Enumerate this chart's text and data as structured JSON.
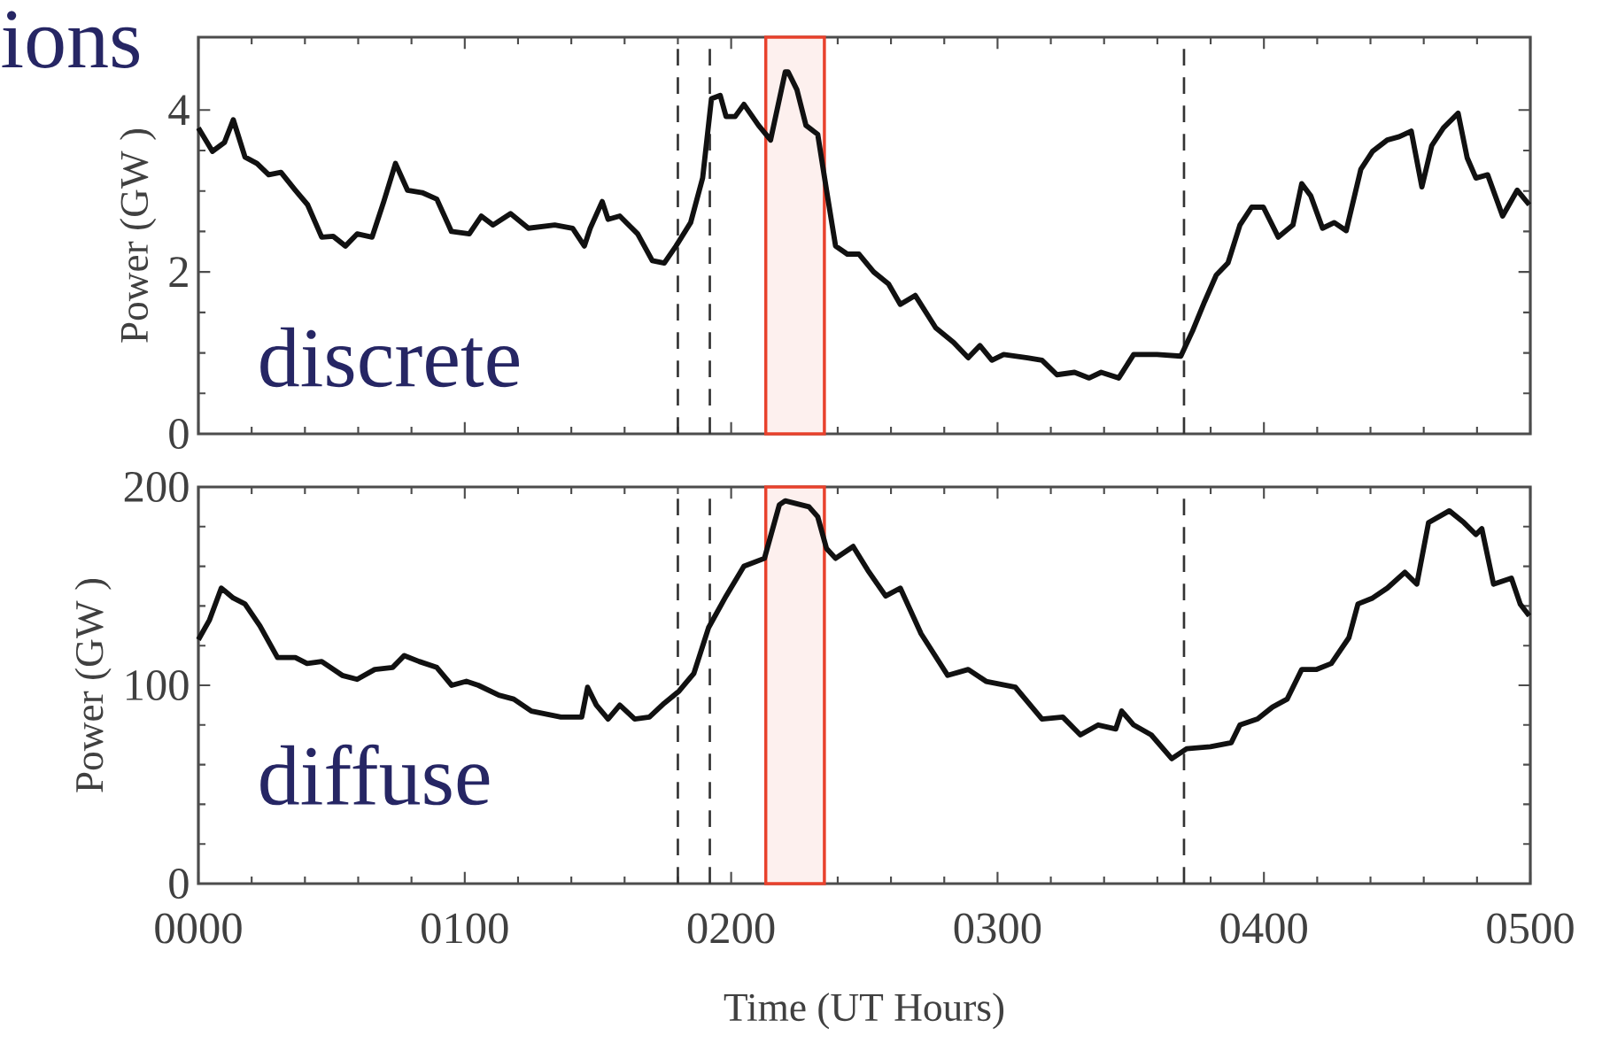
{
  "chart_data": [
    {
      "type": "line",
      "title": "ions",
      "ylabel": "Power (GW )",
      "annotations": [
        "discrete"
      ],
      "xlim": [
        0,
        500
      ],
      "xticks": [
        {
          "value": 0,
          "label": null
        },
        {
          "value": 100,
          "label": null
        },
        {
          "value": 200,
          "label": null
        },
        {
          "value": 300,
          "label": null
        },
        {
          "value": 400,
          "label": null
        },
        {
          "value": 500,
          "label": null
        }
      ],
      "ylim": [
        0,
        4.9
      ],
      "yticks": [
        0,
        2,
        4
      ],
      "tick_labels": "y",
      "ref_lines": [
        {
          "axis": "x",
          "value": 180,
          "line_style": "dashed",
          "color": "#333333"
        },
        {
          "axis": "x",
          "value": 192,
          "line_style": "dashed",
          "color": "#333333"
        },
        {
          "axis": "x",
          "value": 370,
          "line_style": "dashed",
          "color": "#333333"
        }
      ],
      "bands": [
        {
          "axis": "x",
          "from": 213,
          "to": 235,
          "color": "#e8412c"
        }
      ],
      "series": [
        {
          "color": "#111111",
          "x": [
            0,
            5.3,
            9.8,
            13.1,
            17.5,
            22,
            26.4,
            31,
            36.4,
            41,
            46.3,
            50.6,
            55.2,
            59.6,
            65.2,
            69.6,
            74,
            78.5,
            84,
            89.5,
            95,
            101.7,
            106.2,
            110.6,
            117.2,
            123.9,
            133.8,
            140.5,
            144.9,
            147.1,
            151.6,
            153.8,
            158.2,
            164.9,
            170.4,
            174.9,
            179.3,
            184.8,
            189.3,
            192.6,
            195.9,
            198.1,
            201.5,
            204.8,
            210.3,
            214.8,
            220.3,
            221.4,
            224.7,
            228.1,
            232.5,
            235.8,
            239.2,
            243.6,
            248,
            253.5,
            259.1,
            263.5,
            269.1,
            276.8,
            283.5,
            289,
            293.4,
            297.9,
            302.3,
            311.2,
            316.7,
            322.3,
            328.9,
            334.4,
            338.9,
            345.5,
            351.1,
            359.9,
            368.8,
            373.2,
            377.7,
            382.1,
            386.5,
            391,
            395.4,
            399.8,
            405.4,
            410.9,
            414.2,
            417.6,
            422,
            426.4,
            430.9,
            436.4,
            440.8,
            446.3,
            450.8,
            455.3,
            459.3,
            463,
            467.4,
            472.9,
            476.3,
            479.6,
            484,
            489.6,
            495.1,
            499.6
          ],
          "values": [
            3.78,
            3.49,
            3.6,
            3.88,
            3.42,
            3.34,
            3.2,
            3.23,
            3.01,
            2.83,
            2.43,
            2.44,
            2.32,
            2.47,
            2.43,
            2.87,
            3.34,
            3.01,
            2.98,
            2.9,
            2.5,
            2.47,
            2.69,
            2.58,
            2.72,
            2.54,
            2.58,
            2.54,
            2.32,
            2.54,
            2.87,
            2.65,
            2.69,
            2.47,
            2.14,
            2.11,
            2.32,
            2.61,
            3.16,
            4.14,
            4.18,
            3.92,
            3.92,
            4.07,
            3.81,
            3.63,
            4.47,
            4.47,
            4.25,
            3.81,
            3.7,
            3.01,
            2.32,
            2.22,
            2.22,
            2.0,
            1.85,
            1.6,
            1.71,
            1.31,
            1.13,
            0.94,
            1.09,
            0.91,
            0.98,
            0.94,
            0.91,
            0.73,
            0.76,
            0.69,
            0.76,
            0.69,
            0.98,
            0.98,
            0.96,
            1.27,
            1.63,
            1.96,
            2.11,
            2.58,
            2.8,
            2.8,
            2.43,
            2.58,
            3.09,
            2.94,
            2.54,
            2.61,
            2.51,
            3.27,
            3.49,
            3.63,
            3.67,
            3.74,
            3.05,
            3.56,
            3.78,
            3.96,
            3.41,
            3.16,
            3.2,
            2.69,
            3.01,
            2.83
          ]
        }
      ]
    },
    {
      "type": "line",
      "ylabel": "Power (GW )",
      "xlabel": "Time (UT Hours)",
      "annotations": [
        "diffuse"
      ],
      "xlim": [
        0,
        500
      ],
      "xticks": [
        {
          "value": 0,
          "label": "0000"
        },
        {
          "value": 100,
          "label": "0100"
        },
        {
          "value": 200,
          "label": "0200"
        },
        {
          "value": 300,
          "label": "0300"
        },
        {
          "value": 400,
          "label": "0400"
        },
        {
          "value": 500,
          "label": "0500"
        }
      ],
      "ylim": [
        0,
        200
      ],
      "yticks": [
        0,
        100,
        200
      ],
      "ref_lines": [
        {
          "axis": "x",
          "value": 180,
          "line_style": "dashed",
          "color": "#333333"
        },
        {
          "axis": "x",
          "value": 192,
          "line_style": "dashed",
          "color": "#333333"
        },
        {
          "axis": "x",
          "value": 370,
          "line_style": "dashed",
          "color": "#333333"
        }
      ],
      "bands": [
        {
          "axis": "x",
          "from": 213,
          "to": 235,
          "color": "#e8412c"
        }
      ],
      "series": [
        {
          "color": "#111111",
          "x": [
            0,
            4.2,
            8.6,
            13.1,
            17.5,
            23.1,
            29.7,
            36.4,
            40.8,
            46.3,
            54,
            59.6,
            66.2,
            72.9,
            77.3,
            82.9,
            89.5,
            95.1,
            100.6,
            105.1,
            112.8,
            118.4,
            125,
            136.1,
            143.9,
            146.1,
            149.4,
            153.8,
            158.2,
            163.8,
            169.3,
            174.9,
            180.4,
            186,
            191.5,
            198.1,
            204.8,
            212.5,
            218.1,
            220.3,
            229.2,
            232.5,
            235.8,
            239.2,
            245.8,
            251.3,
            258,
            263.5,
            271.3,
            281.3,
            289,
            295.7,
            306.7,
            316.7,
            324.5,
            331.1,
            337.8,
            344.4,
            346.6,
            351.1,
            357.7,
            365.4,
            371,
            379.9,
            387.7,
            391,
            397.6,
            403.2,
            408.7,
            414.2,
            419.8,
            425.3,
            431.9,
            435.3,
            440.8,
            446.3,
            452.9,
            457.4,
            461.8,
            469.6,
            475.1,
            479.6,
            481.8,
            486.2,
            492.9,
            496.2,
            499.6
          ],
          "values": [
            123,
            133,
            149,
            144,
            141,
            130,
            114,
            114,
            111,
            112,
            105,
            103,
            108,
            109,
            115,
            112,
            109,
            100,
            102,
            100,
            95,
            93,
            87,
            84,
            84,
            99,
            90,
            83,
            90,
            83,
            84,
            91,
            97,
            106,
            129,
            145,
            160,
            164,
            191,
            193,
            190,
            185,
            169,
            164,
            170,
            158,
            145,
            149,
            126,
            105,
            108,
            102,
            99,
            83,
            84,
            75,
            80,
            78,
            87,
            80,
            75,
            63,
            68,
            69,
            71,
            80,
            83,
            89,
            93,
            108,
            108,
            111,
            124,
            141,
            144,
            149,
            157,
            151,
            182,
            188,
            182,
            176,
            179,
            151,
            154,
            141,
            135
          ]
        }
      ]
    }
  ]
}
